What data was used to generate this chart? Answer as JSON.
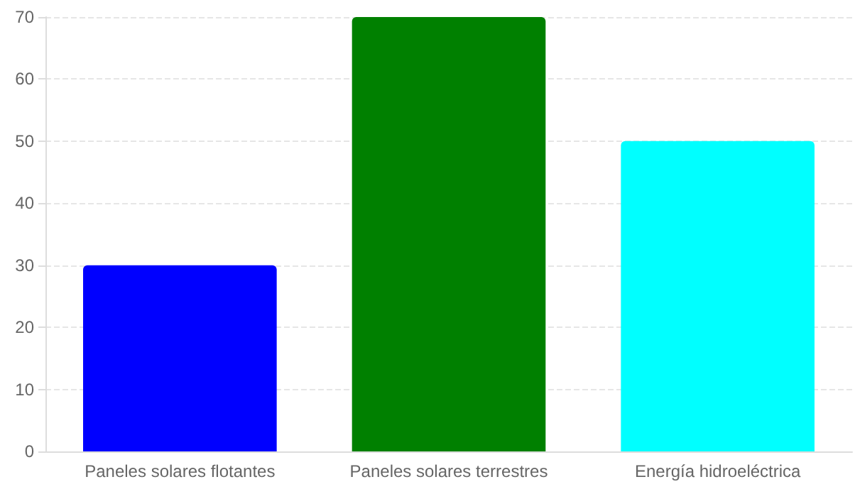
{
  "chart_data": {
    "type": "bar",
    "categories": [
      "Paneles solares flotantes",
      "Paneles solares terrestres",
      "Energía hidroeléctrica"
    ],
    "values": [
      30,
      70,
      50
    ],
    "colors": [
      "#0000ff",
      "#008000",
      "#00ffff"
    ],
    "ylim": [
      0,
      70
    ],
    "yticks": [
      0,
      10,
      20,
      30,
      40,
      50,
      60,
      70
    ],
    "grid": "y"
  }
}
